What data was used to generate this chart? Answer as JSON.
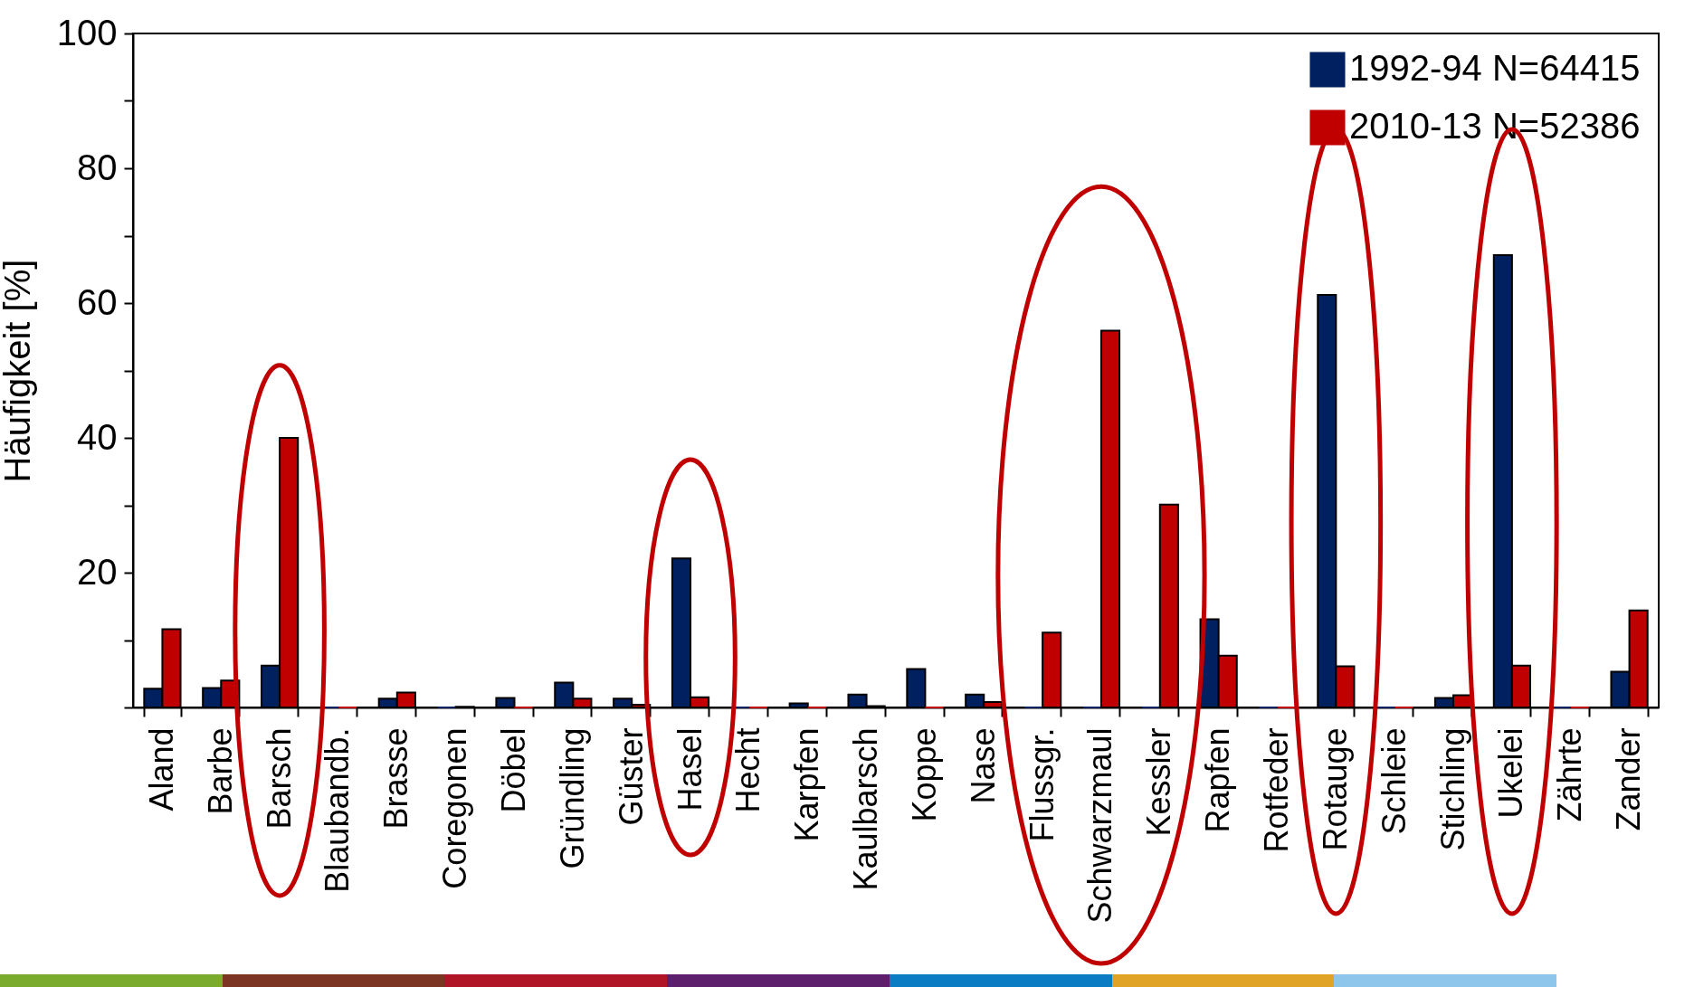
{
  "chart_data": {
    "type": "bar",
    "ylabel": "Häufigkeit [%]",
    "categories": [
      "Aland",
      "Barbe",
      "Barsch",
      "Blaubandb.",
      "Brasse",
      "Coregonen",
      "Döbel",
      "Gründling",
      "Güster",
      "Hasel",
      "Hecht",
      "Karpfen",
      "Kaulbarsch",
      "Koppe",
      "Nase",
      "Flussgr.",
      "Schwarzmaul",
      "Kessler",
      "Rapfen",
      "Rotfeder",
      "Rotauge",
      "Schleie",
      "Stichling",
      "Ukelei",
      "Zährte",
      "Zander"
    ],
    "series": [
      {
        "name": "1992-94 N=64415",
        "color": "#002060",
        "values": [
          2.8,
          2.9,
          6.2,
          0,
          1.3,
          0,
          1.4,
          3.7,
          1.3,
          22.1,
          0,
          0.6,
          1.9,
          5.7,
          1.9,
          0,
          0,
          0,
          13.1,
          0,
          61.2,
          0,
          1.4,
          67.1,
          0,
          5.3
        ]
      },
      {
        "name": "2010-13 N=52386",
        "color": "#c00000",
        "values": [
          11.6,
          4.0,
          40.0,
          0,
          2.2,
          0.1,
          0,
          1.3,
          0.4,
          1.5,
          0,
          0,
          0.2,
          0,
          0.8,
          11.1,
          55.9,
          30.1,
          7.7,
          0,
          6.1,
          0,
          1.8,
          6.2,
          0,
          14.4
        ]
      }
    ],
    "ylim": [
      0,
      100
    ],
    "yticks": [
      {
        "value": 0,
        "label": null
      },
      {
        "value": 10,
        "label": null
      },
      20,
      {
        "value": 30,
        "label": null
      },
      40,
      {
        "value": 50,
        "label": null
      },
      60,
      {
        "value": 70,
        "label": null
      },
      80,
      {
        "value": 90,
        "label": null
      },
      100
    ],
    "grid": false,
    "legend": "top right"
  }
}
